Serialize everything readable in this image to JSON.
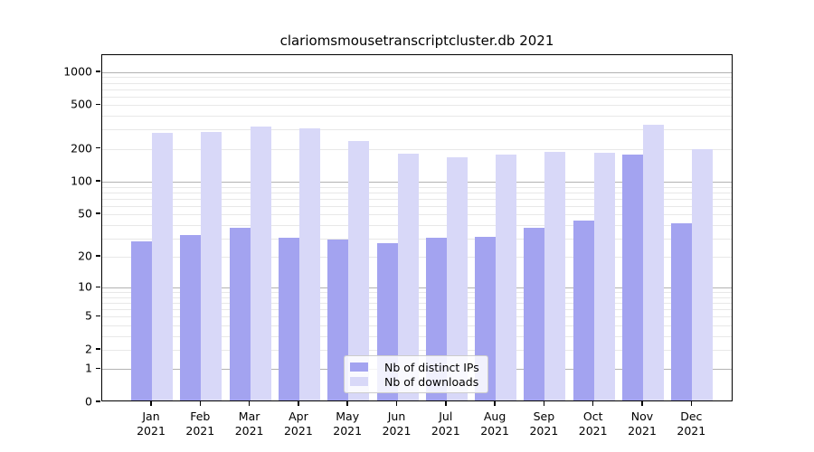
{
  "chart_data": {
    "type": "bar",
    "title": "clariomsmousetranscriptcluster.db 2021",
    "categories": [
      "Jan",
      "Feb",
      "Mar",
      "Apr",
      "May",
      "Jun",
      "Jul",
      "Aug",
      "Sep",
      "Oct",
      "Nov",
      "Dec"
    ],
    "year_label": "2021",
    "series": [
      {
        "name": "Nb of distinct IPs",
        "color": "#a3a3f0",
        "values": [
          27,
          31,
          36,
          29,
          28,
          26,
          29,
          30,
          36,
          42,
          170,
          40
        ]
      },
      {
        "name": "Nb of downloads",
        "color": "#d8d8f8",
        "values": [
          270,
          275,
          310,
          295,
          228,
          175,
          160,
          170,
          182,
          179,
          320,
          190
        ]
      }
    ],
    "xlabel": "",
    "ylabel": "",
    "y_scale": "log10(value+1)",
    "y_ticks": [
      0,
      1,
      2,
      5,
      10,
      20,
      50,
      100,
      200,
      500,
      1000
    ],
    "ylim": [
      0,
      1430
    ],
    "grid": "horizontal log gridlines: major at 1,10,100,1000; minor at 2-9 per decade",
    "legend_position": "lower center"
  },
  "legend": {
    "items": [
      {
        "label": "Nb of distinct IPs"
      },
      {
        "label": "Nb of downloads"
      }
    ]
  }
}
